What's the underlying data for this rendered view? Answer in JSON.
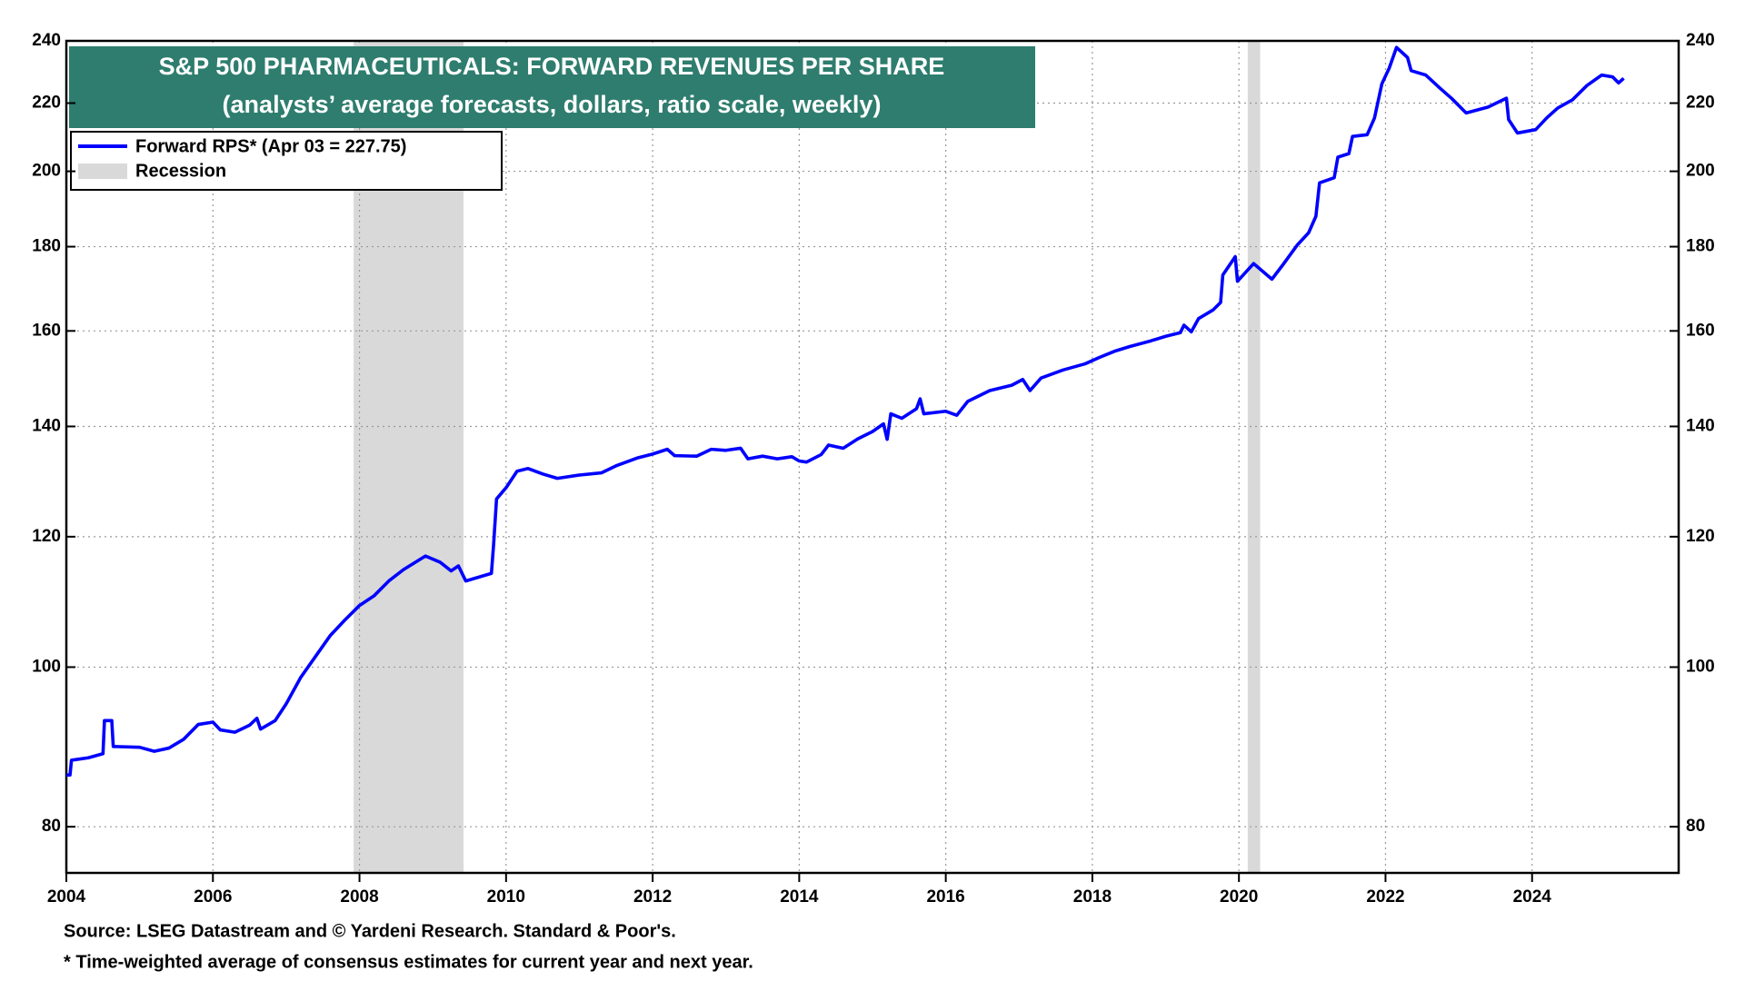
{
  "chart_data": {
    "type": "line",
    "title": "S&P 500 PHARMACEUTICALS: FORWARD REVENUES PER SHARE",
    "subtitle": "(analysts’ average forecasts, dollars, ratio scale, weekly)",
    "x": [
      2004.0,
      2004.05,
      2004.07,
      2004.3,
      2004.5,
      2004.52,
      2004.62,
      2004.64,
      2005.0,
      2005.2,
      2005.4,
      2005.6,
      2005.8,
      2006.0,
      2006.1,
      2006.3,
      2006.5,
      2006.6,
      2006.65,
      2006.85,
      2007.0,
      2007.2,
      2007.4,
      2007.6,
      2007.8,
      2008.0,
      2008.2,
      2008.4,
      2008.6,
      2008.9,
      2009.1,
      2009.25,
      2009.35,
      2009.45,
      2009.8,
      2009.83,
      2009.87,
      2010.0,
      2010.15,
      2010.3,
      2010.5,
      2010.7,
      2011.0,
      2011.3,
      2011.5,
      2011.8,
      2012.0,
      2012.2,
      2012.3,
      2012.6,
      2012.8,
      2013.0,
      2013.2,
      2013.3,
      2013.5,
      2013.7,
      2013.9,
      2014.0,
      2014.1,
      2014.3,
      2014.4,
      2014.6,
      2014.8,
      2015.0,
      2015.15,
      2015.2,
      2015.25,
      2015.4,
      2015.6,
      2015.65,
      2015.7,
      2016.0,
      2016.15,
      2016.3,
      2016.6,
      2016.9,
      2017.05,
      2017.15,
      2017.3,
      2017.6,
      2017.9,
      2018.1,
      2018.3,
      2018.5,
      2018.8,
      2019.0,
      2019.2,
      2019.25,
      2019.35,
      2019.45,
      2019.65,
      2019.75,
      2019.78,
      2019.95,
      2019.98,
      2020.2,
      2020.35,
      2020.45,
      2020.6,
      2020.8,
      2020.95,
      2021.05,
      2021.1,
      2021.3,
      2021.35,
      2021.5,
      2021.55,
      2021.75,
      2021.85,
      2021.95,
      2022.05,
      2022.15,
      2022.3,
      2022.35,
      2022.55,
      2022.75,
      2022.9,
      2023.1,
      2023.4,
      2023.65,
      2023.68,
      2023.8,
      2024.05,
      2024.2,
      2024.35,
      2024.55,
      2024.75,
      2024.95,
      2025.1,
      2025.18,
      2025.25
    ],
    "series": [
      {
        "name": "Forward RPS* (Apr 03 = 227.75)",
        "color": "#0000ff",
        "values": [
          86,
          86,
          87.8,
          88.1,
          88.6,
          92.8,
          92.8,
          89.5,
          89.4,
          88.9,
          89.3,
          90.4,
          92.3,
          92.6,
          91.6,
          91.3,
          92.2,
          93.1,
          91.7,
          92.8,
          95,
          98.6,
          101.5,
          104.5,
          106.8,
          109,
          110.5,
          112.8,
          114.6,
          116.8,
          115.8,
          114.4,
          115.2,
          112.8,
          114,
          118.7,
          126.5,
          128.5,
          131.5,
          132,
          131,
          130.2,
          130.8,
          131.2,
          132.5,
          134,
          134.7,
          135.6,
          134.4,
          134.3,
          135.6,
          135.4,
          135.8,
          133.8,
          134.3,
          133.8,
          134.2,
          133.4,
          133.2,
          134.6,
          136.4,
          135.8,
          137.6,
          139,
          140.5,
          137.5,
          142.5,
          141.6,
          143.5,
          145.5,
          142.5,
          143,
          142.2,
          145,
          147.2,
          148.3,
          149.5,
          147.2,
          149.8,
          151.5,
          152.8,
          154.2,
          155.5,
          156.5,
          157.8,
          158.8,
          159.6,
          161.3,
          159.8,
          162.8,
          164.8,
          166.5,
          173,
          177.5,
          171.5,
          175.8,
          173.5,
          172,
          175.5,
          180.5,
          183.5,
          187.8,
          196.8,
          198.2,
          204,
          205,
          210,
          210.5,
          215.5,
          226,
          231,
          237.8,
          234.5,
          230.2,
          228.8,
          224.5,
          221.5,
          217,
          218.8,
          221.5,
          215,
          211,
          212,
          215.5,
          218.5,
          221,
          225.5,
          228.8,
          228.2,
          226.3,
          227.75
        ]
      }
    ],
    "recession": {
      "label": "Recession",
      "color": "#d9d9d9",
      "periods": [
        [
          2007.92,
          2009.42
        ],
        [
          2020.12,
          2020.29
        ]
      ]
    },
    "xlim": [
      2004,
      2026
    ],
    "ylim": [
      75,
      240
    ],
    "xticks": [
      2004,
      2006,
      2008,
      2010,
      2012,
      2014,
      2016,
      2018,
      2020,
      2022,
      2024
    ],
    "yticks": [
      80,
      100,
      120,
      140,
      160,
      180,
      200,
      220,
      240
    ],
    "log_scale": true,
    "grid": true,
    "legend": "top-left",
    "notes": [
      "Source: LSEG Datastream and © Yardeni Research. Standard & Poor's.",
      "* Time-weighted average of consensus estimates for current year and next year."
    ]
  }
}
